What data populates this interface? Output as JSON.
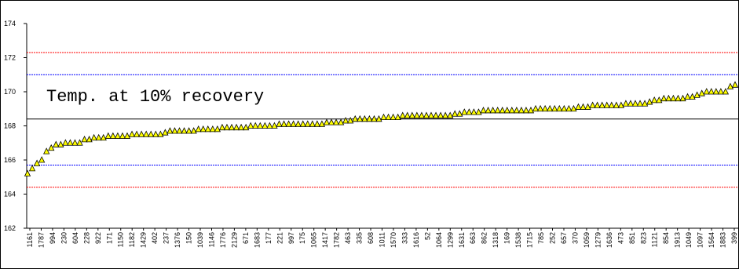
{
  "chart_data": {
    "type": "scatter",
    "title": "",
    "xlabel": "",
    "ylabel": "",
    "annotation": "Temp. at 10% recovery",
    "ylim": [
      162,
      174
    ],
    "yticks": [
      162,
      164,
      166,
      168,
      170,
      172,
      174
    ],
    "grid": false,
    "legend": "none",
    "marker": {
      "shape": "triangle",
      "fill": "#ffff00",
      "stroke": "#000000"
    },
    "reference_lines": [
      {
        "value": 172.3,
        "color": "#ff0000",
        "style": "dotted"
      },
      {
        "value": 171.0,
        "color": "#0000ff",
        "style": "dotted"
      },
      {
        "value": 168.4,
        "color": "#000000",
        "style": "solid"
      },
      {
        "value": 165.7,
        "color": "#0000ff",
        "style": "dotted"
      },
      {
        "value": 164.4,
        "color": "#ff0000",
        "style": "dotted"
      }
    ],
    "x_tick_labels": [
      "1161",
      "1787",
      "994",
      "230",
      "604",
      "228",
      "922",
      "171",
      "1150",
      "1182",
      "1429",
      "402",
      "237",
      "1376",
      "150",
      "1039",
      "1146",
      "1776",
      "2129",
      "671",
      "1683",
      "177",
      "221",
      "997",
      "175",
      "1065",
      "1417",
      "1782",
      "463",
      "335",
      "608",
      "1011",
      "1570",
      "333",
      "1616",
      "52",
      "1064",
      "1299",
      "1631",
      "663",
      "862",
      "1318",
      "169",
      "1538",
      "1715",
      "785",
      "252",
      "657",
      "370",
      "1059",
      "1279",
      "1636",
      "473",
      "851",
      "823",
      "1121",
      "854",
      "1913",
      "1049",
      "1097",
      "1564",
      "1883",
      "399"
    ],
    "y": [
      165.2,
      165.5,
      165.8,
      166.0,
      166.5,
      166.7,
      166.9,
      166.9,
      167.0,
      167.0,
      167.0,
      167.0,
      167.2,
      167.2,
      167.3,
      167.3,
      167.3,
      167.4,
      167.4,
      167.4,
      167.4,
      167.4,
      167.5,
      167.5,
      167.5,
      167.5,
      167.5,
      167.5,
      167.5,
      167.6,
      167.7,
      167.7,
      167.7,
      167.7,
      167.7,
      167.7,
      167.8,
      167.8,
      167.8,
      167.8,
      167.8,
      167.9,
      167.9,
      167.9,
      167.9,
      167.9,
      167.9,
      168.0,
      168.0,
      168.0,
      168.0,
      168.0,
      168.0,
      168.1,
      168.1,
      168.1,
      168.1,
      168.1,
      168.1,
      168.1,
      168.1,
      168.1,
      168.1,
      168.2,
      168.2,
      168.2,
      168.2,
      168.3,
      168.3,
      168.4,
      168.4,
      168.4,
      168.4,
      168.4,
      168.4,
      168.5,
      168.5,
      168.5,
      168.5,
      168.6,
      168.6,
      168.6,
      168.6,
      168.6,
      168.6,
      168.6,
      168.6,
      168.6,
      168.6,
      168.6,
      168.7,
      168.7,
      168.8,
      168.8,
      168.8,
      168.8,
      168.9,
      168.9,
      168.9,
      168.9,
      168.9,
      168.9,
      168.9,
      168.9,
      168.9,
      168.9,
      168.9,
      169.0,
      169.0,
      169.0,
      169.0,
      169.0,
      169.0,
      169.0,
      169.0,
      169.0,
      169.1,
      169.1,
      169.1,
      169.2,
      169.2,
      169.2,
      169.2,
      169.2,
      169.2,
      169.2,
      169.3,
      169.3,
      169.3,
      169.3,
      169.3,
      169.4,
      169.5,
      169.5,
      169.6,
      169.6,
      169.6,
      169.6,
      169.6,
      169.7,
      169.7,
      169.8,
      169.9,
      170.0,
      170.0,
      170.0,
      170.0,
      170.0,
      170.3,
      170.4
    ]
  }
}
